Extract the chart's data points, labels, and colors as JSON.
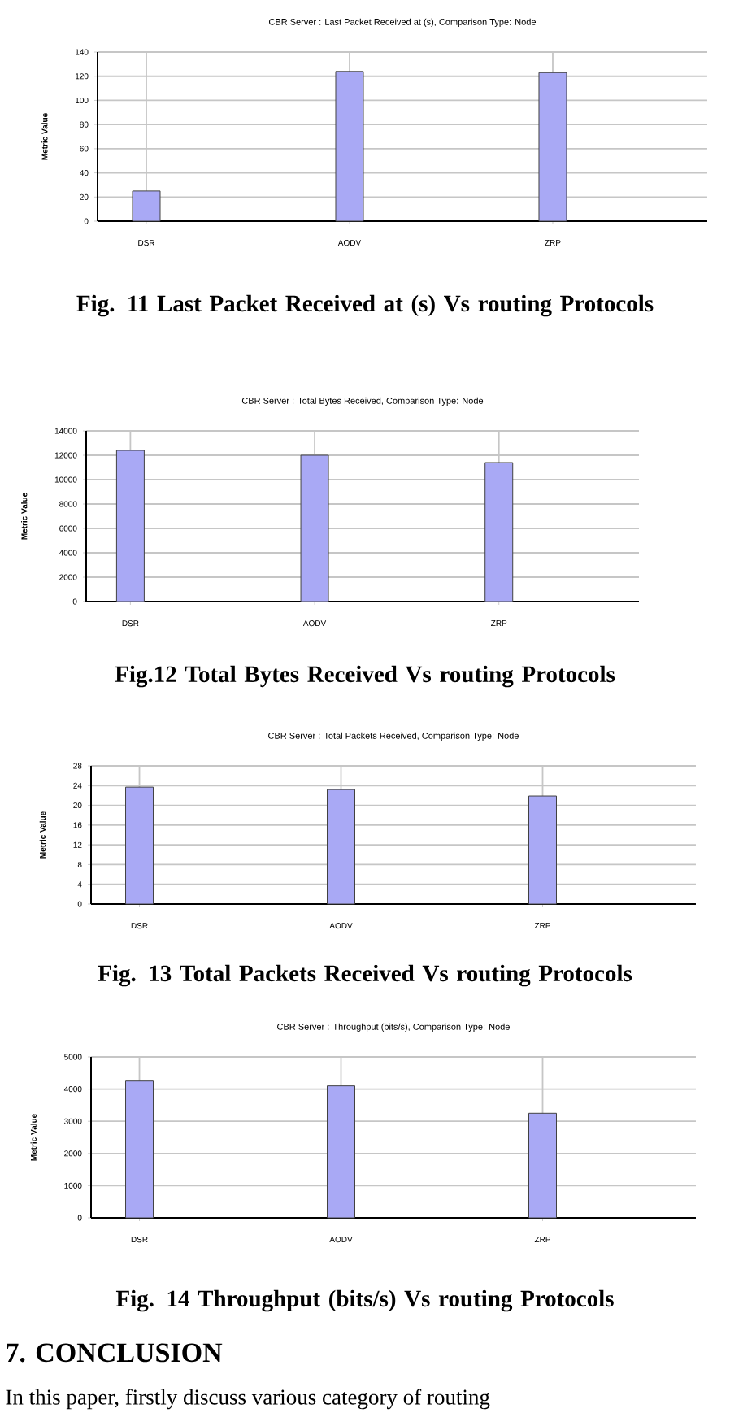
{
  "chart_data": [
    {
      "type": "bar",
      "title": "CBR Server : Last Packet Received at (s), Comparison Type: Node",
      "ylabel": "Metric Value",
      "categories": [
        "DSR",
        "AODV",
        "ZRP"
      ],
      "values": [
        25,
        124,
        123
      ],
      "color": "#a9a9f5",
      "ylim": [
        0,
        140
      ],
      "yticks": [
        0,
        20,
        40,
        60,
        80,
        100,
        120,
        140
      ],
      "grid": true,
      "annotations": [
        "Fig. 11 Last Packet Received at (s) Vs routing Protocols"
      ]
    },
    {
      "type": "bar",
      "title": "CBR Server : Total Bytes Received, Comparison Type: Node",
      "ylabel": "Metric Value",
      "categories": [
        "DSR",
        "AODV",
        "ZRP"
      ],
      "values": [
        12400,
        12000,
        11400
      ],
      "color": "#a9a9f5",
      "ylim": [
        0,
        14000
      ],
      "yticks": [
        0,
        2000,
        4000,
        6000,
        8000,
        10000,
        12000,
        14000
      ],
      "grid": true,
      "annotations": [
        "Fig.12 Total Bytes Received Vs routing Protocols"
      ]
    },
    {
      "type": "bar",
      "title": "CBR Server : Total Packets Received, Comparison Type: Node",
      "ylabel": "Metric Value",
      "categories": [
        "DSR",
        "AODV",
        "ZRP"
      ],
      "values": [
        23.7,
        23.2,
        21.9
      ],
      "color": "#a9a9f5",
      "ylim": [
        0,
        28
      ],
      "yticks": [
        0,
        4,
        8,
        12,
        16,
        20,
        24,
        28
      ],
      "grid": true,
      "annotations": [
        "Fig. 13 Total Packets Received Vs routing Protocols"
      ]
    },
    {
      "type": "bar",
      "title": "CBR Server : Throughput (bits/s), Comparison Type: Node",
      "ylabel": "Metric Value",
      "categories": [
        "DSR",
        "AODV",
        "ZRP"
      ],
      "values": [
        4250,
        4100,
        3250
      ],
      "color": "#a9a9f5",
      "ylim": [
        0,
        5000
      ],
      "yticks": [
        0,
        1000,
        2000,
        3000,
        4000,
        5000
      ],
      "grid": true,
      "annotations": [
        "Fig. 14 Throughput (bits/s) Vs routing Protocols"
      ]
    },
    {
      "type": "other",
      "title": "7. CONCLUSION",
      "annotations": [
        "In this paper, firstly discuss various category of routing"
      ]
    }
  ]
}
